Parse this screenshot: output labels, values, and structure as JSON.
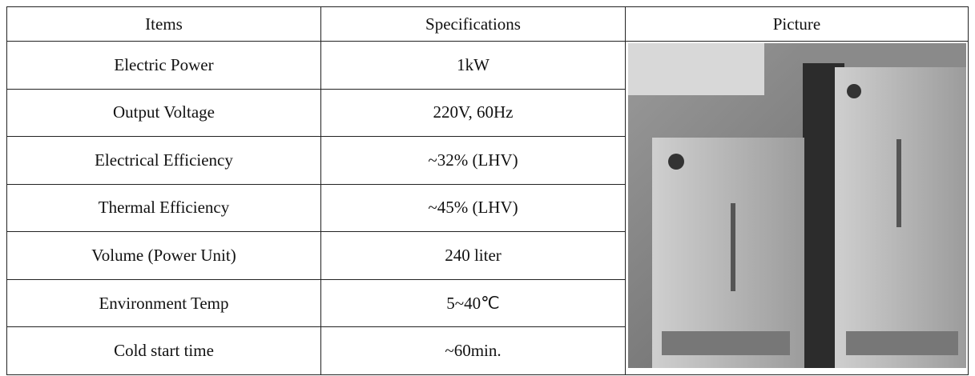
{
  "table": {
    "header": [
      "Items",
      "Specifications",
      "Picture"
    ],
    "rows": [
      [
        "Electric Power",
        "1kW"
      ],
      [
        "Output Voltage",
        "220V, 60Hz"
      ],
      [
        "Electrical Efficiency",
        "~32% (LHV)"
      ],
      [
        "Thermal Efficiency",
        "~45% (LHV)"
      ],
      [
        "Volume (Power Unit)",
        "240 liter"
      ],
      [
        "Environment Temp",
        "5~40℃"
      ],
      [
        "Cold start time",
        "~60min."
      ]
    ]
  }
}
